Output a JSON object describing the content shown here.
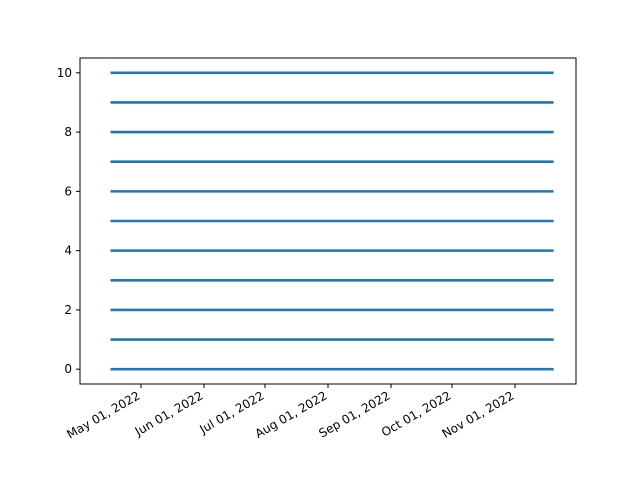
{
  "chart_data": {
    "type": "line",
    "title": "",
    "xlabel": "",
    "ylabel": "",
    "x_axis": {
      "kind": "date",
      "range": [
        "2022-04-01",
        "2022-12-01"
      ],
      "ticks": [
        {
          "date": "2022-05-01",
          "label": "May 01, 2022"
        },
        {
          "date": "2022-06-01",
          "label": "Jun 01, 2022"
        },
        {
          "date": "2022-07-01",
          "label": "Jul 01, 2022"
        },
        {
          "date": "2022-08-01",
          "label": "Aug 01, 2022"
        },
        {
          "date": "2022-09-01",
          "label": "Sep 01, 2022"
        },
        {
          "date": "2022-10-01",
          "label": "Oct 01, 2022"
        },
        {
          "date": "2022-11-01",
          "label": "Nov 01, 2022"
        }
      ]
    },
    "y_axis": {
      "range": [
        -0.5,
        10.5
      ],
      "ticks": [
        0,
        2,
        4,
        6,
        8,
        10
      ]
    },
    "grid": false,
    "legend": "none",
    "line_color": "#1f77b4",
    "series": [
      {
        "x": [
          "2022-04-16",
          "2022-11-20"
        ],
        "y": [
          0,
          0
        ]
      },
      {
        "x": [
          "2022-04-16",
          "2022-11-20"
        ],
        "y": [
          1,
          1
        ]
      },
      {
        "x": [
          "2022-04-16",
          "2022-11-20"
        ],
        "y": [
          2,
          2
        ]
      },
      {
        "x": [
          "2022-04-16",
          "2022-11-20"
        ],
        "y": [
          3,
          3
        ]
      },
      {
        "x": [
          "2022-04-16",
          "2022-11-20"
        ],
        "y": [
          4,
          4
        ]
      },
      {
        "x": [
          "2022-04-16",
          "2022-11-20"
        ],
        "y": [
          5,
          5
        ]
      },
      {
        "x": [
          "2022-04-16",
          "2022-11-20"
        ],
        "y": [
          6,
          6
        ]
      },
      {
        "x": [
          "2022-04-16",
          "2022-11-20"
        ],
        "y": [
          7,
          7
        ]
      },
      {
        "x": [
          "2022-04-16",
          "2022-11-20"
        ],
        "y": [
          8,
          8
        ]
      },
      {
        "x": [
          "2022-04-16",
          "2022-11-20"
        ],
        "y": [
          9,
          9
        ]
      },
      {
        "x": [
          "2022-04-16",
          "2022-11-20"
        ],
        "y": [
          10,
          10
        ]
      }
    ]
  }
}
